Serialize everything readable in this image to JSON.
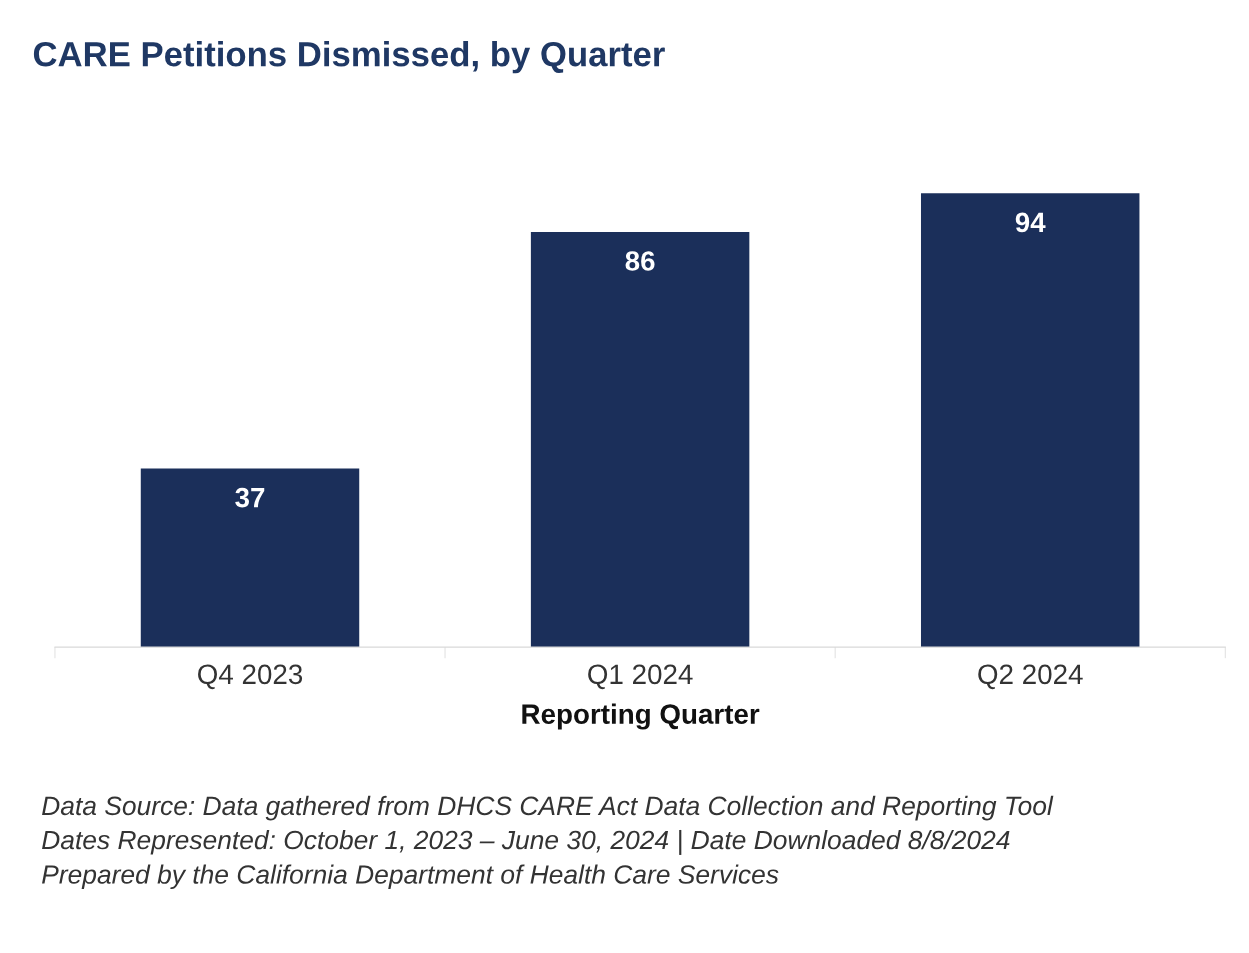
{
  "chart_data": {
    "type": "bar",
    "title": "CARE Petitions Dismissed, by Quarter",
    "xlabel": "Reporting Quarter",
    "categories": [
      "Q4 2023",
      "Q1 2024",
      "Q2 2024"
    ],
    "values": [
      37,
      86,
      94
    ],
    "color": "#1b2f5a",
    "data_labels": true,
    "grid": false,
    "legend": false,
    "tick_labels": "x",
    "annotations": [
      "Data Source: Data gathered from DHCS CARE Act Data Collection and Reporting Tool",
      "Dates Represented: October 1, 2023 – June 30, 2024 | Date Downloaded 8/8/2024",
      "Prepared by the California Department of Health Care Services"
    ]
  }
}
